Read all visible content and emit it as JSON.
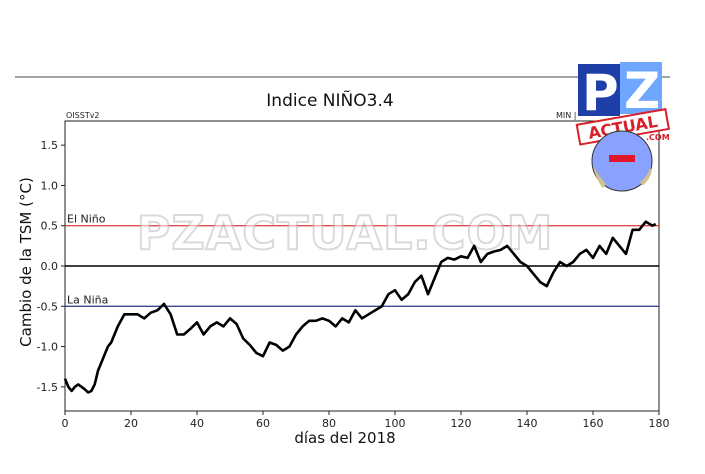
{
  "header": {
    "title": "Indice NIÑO3.4",
    "source_label": "OISSTv2",
    "min_label": "MIN |"
  },
  "watermark": {
    "text": "PZACTUAL.COM",
    "logo_letters": "PZ",
    "logo_word": "ACTUAL",
    "logo_suffix": ".COM"
  },
  "colors": {
    "el_nino_line": "#e24a4a",
    "la_nina_line": "#3b4a8c",
    "data_line": "#000000",
    "logo_blue": "#1f3fa8",
    "logo_red": "#d8202a",
    "globe": "#8aa2ff"
  },
  "chart_data": {
    "type": "line",
    "xlabel": "días del 2018",
    "ylabel": "Cambio de la TSM (°C)",
    "xlim": [
      0,
      180
    ],
    "ylim": [
      -1.8,
      1.8
    ],
    "xticks": [
      "0",
      "20",
      "40",
      "60",
      "80",
      "100",
      "120",
      "140",
      "160",
      "180"
    ],
    "yticks": [
      "-1.5",
      "-1.0",
      "-0.5",
      "0.0",
      "0.5",
      "1.0",
      "1.5"
    ],
    "grid": false,
    "reference_lines": [
      {
        "label": "El Niño",
        "y": 0.5
      },
      {
        "label": "",
        "y": 0.0
      },
      {
        "label": "La Niña",
        "y": -0.5
      }
    ],
    "series": [
      {
        "x": [
          0,
          1,
          2,
          3,
          4,
          5,
          6,
          7,
          8,
          9,
          10,
          12,
          13,
          14,
          16,
          18,
          20,
          22,
          24,
          26,
          28,
          30,
          32,
          34,
          36,
          38,
          40,
          42,
          44,
          46,
          48,
          50,
          52,
          54,
          56,
          58,
          60,
          62,
          64,
          66,
          68,
          70,
          72,
          74,
          76,
          78,
          80,
          82,
          84,
          86,
          88,
          90,
          92,
          94,
          96,
          98,
          100,
          102,
          104,
          106,
          108,
          110,
          112,
          114,
          116,
          118,
          120,
          122,
          124,
          126,
          128,
          130,
          132,
          134,
          136,
          138,
          140,
          142,
          144,
          146,
          148,
          150,
          152,
          154,
          156,
          158,
          160,
          162,
          164,
          166,
          168,
          170,
          172,
          174,
          176,
          178,
          179
        ],
        "y": [
          -1.4,
          -1.5,
          -1.55,
          -1.5,
          -1.47,
          -1.5,
          -1.53,
          -1.57,
          -1.55,
          -1.47,
          -1.3,
          -1.1,
          -1.0,
          -0.95,
          -0.75,
          -0.6,
          -0.6,
          -0.6,
          -0.65,
          -0.58,
          -0.55,
          -0.47,
          -0.6,
          -0.85,
          -0.85,
          -0.78,
          -0.7,
          -0.85,
          -0.75,
          -0.7,
          -0.75,
          -0.65,
          -0.72,
          -0.9,
          -0.98,
          -1.08,
          -1.12,
          -0.95,
          -0.98,
          -1.05,
          -1.0,
          -0.85,
          -0.75,
          -0.68,
          -0.68,
          -0.65,
          -0.68,
          -0.75,
          -0.65,
          -0.7,
          -0.55,
          -0.65,
          -0.6,
          -0.55,
          -0.5,
          -0.35,
          -0.3,
          -0.42,
          -0.35,
          -0.2,
          -0.12,
          -0.35,
          -0.15,
          0.05,
          0.1,
          0.08,
          0.12,
          0.1,
          0.25,
          0.05,
          0.15,
          0.18,
          0.2,
          0.25,
          0.15,
          0.05,
          0.0,
          -0.1,
          -0.2,
          -0.25,
          -0.08,
          0.05,
          0.0,
          0.05,
          0.15,
          0.2,
          0.1,
          0.25,
          0.15,
          0.35,
          0.25,
          0.15,
          0.45,
          0.45,
          0.55,
          0.5,
          0.52
        ]
      }
    ]
  }
}
